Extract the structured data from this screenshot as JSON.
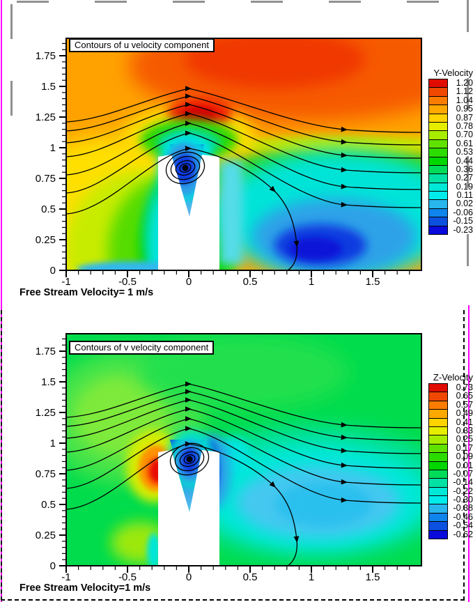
{
  "page": {
    "background": "#ffffff",
    "paper_edge_color": "#ff00ff",
    "ruler_dash_color": "#909090",
    "frame_border_color": "#000000"
  },
  "colormap": [
    "#e00c00",
    "#f04800",
    "#fa7c00",
    "#ffa800",
    "#ffd200",
    "#e6ee00",
    "#a8ec00",
    "#60e200",
    "#2cdc00",
    "#00d600",
    "#00dc58",
    "#00e2a4",
    "#00e8d8",
    "#00ecec",
    "#28b6ec",
    "#0e84ec",
    "#0c50e0",
    "#0a0adc"
  ],
  "plots": [
    {
      "title": "Contours of u velocity component",
      "caption": "Free Stream Velocity= 1 m/s",
      "legend_title": "Y-Velocity",
      "legend_values": [
        "1.20",
        "1.12",
        "1.04",
        "0.95",
        "0.87",
        "0.78",
        "0.70",
        "0.61",
        "0.53",
        "0.44",
        "0.36",
        "0.27",
        "0.19",
        "0.11",
        "0.02",
        "-0.06",
        "-0.15",
        "-0.23"
      ],
      "x_axis": {
        "range": [
          -1,
          1.898
        ],
        "minor_step": 0.1,
        "major_ticks": [
          {
            "label": "-1",
            "value": -1
          },
          {
            "label": "-0.5",
            "value": -0.5
          },
          {
            "label": "0",
            "value": 0
          },
          {
            "label": "0.5",
            "value": 0.5
          },
          {
            "label": "1",
            "value": 1
          },
          {
            "label": "1.5",
            "value": 1.5
          }
        ]
      },
      "y_axis": {
        "range": [
          0,
          1.892
        ],
        "minor_step": 0.05,
        "major_ticks": [
          {
            "label": "0",
            "value": 0
          },
          {
            "label": "0.25",
            "value": 0.25
          },
          {
            "label": "0.5",
            "value": 0.5
          },
          {
            "label": "0.75",
            "value": 0.75
          },
          {
            "label": "1",
            "value": 1
          },
          {
            "label": "1.25",
            "value": 1.25
          },
          {
            "label": "1.5",
            "value": 1.5
          },
          {
            "label": "1.75",
            "value": 1.75
          }
        ]
      }
    },
    {
      "title": "Contours of v velocity component",
      "caption": "Free Stream Velocity=1 m/s",
      "legend_title": "Z-Velocity",
      "legend_values": [
        "0.73",
        "0.65",
        "0.57",
        "0.49",
        "0.41",
        "0.33",
        "0.25",
        "0.17",
        "0.09",
        "0.01",
        "-0.07",
        "-0.14",
        "-0.22",
        "-0.30",
        "-0.38",
        "-0.46",
        "-0.54",
        "-0.62"
      ],
      "x_axis": {
        "range": [
          -1,
          1.898
        ],
        "minor_step": 0.1,
        "major_ticks": [
          {
            "label": "-1",
            "value": -1
          },
          {
            "label": "-0.5",
            "value": -0.5
          },
          {
            "label": "0",
            "value": 0
          },
          {
            "label": "0.5",
            "value": 0.5
          },
          {
            "label": "1",
            "value": 1
          },
          {
            "label": "1.5",
            "value": 1.5
          }
        ]
      },
      "y_axis": {
        "range": [
          0,
          1.892
        ],
        "minor_step": 0.05,
        "major_ticks": [
          {
            "label": "0",
            "value": 0
          },
          {
            "label": "0.25",
            "value": 0.25
          },
          {
            "label": "0.5",
            "value": 0.5
          },
          {
            "label": "0.75",
            "value": 0.75
          },
          {
            "label": "1",
            "value": 1
          },
          {
            "label": "1.25",
            "value": 1.25
          },
          {
            "label": "1.5",
            "value": 1.5
          },
          {
            "label": "1.75",
            "value": 1.75
          }
        ]
      }
    }
  ],
  "chart_data": [
    {
      "type": "heatmap",
      "title": "Contours of u velocity component",
      "field": "u velocity, legend labeled Y-Velocity",
      "xlim": [
        -1,
        1.9
      ],
      "ylim": [
        0,
        1.9
      ],
      "x_ticks": [
        -1,
        -0.5,
        0,
        0.5,
        1,
        1.5
      ],
      "y_ticks": [
        0,
        0.25,
        0.5,
        0.75,
        1,
        1.25,
        1.5,
        1.75
      ],
      "contour_levels": [
        1.2,
        1.12,
        1.04,
        0.95,
        0.87,
        0.78,
        0.7,
        0.61,
        0.53,
        0.44,
        0.36,
        0.27,
        0.19,
        0.11,
        0.02,
        -0.06,
        -0.15,
        -0.23
      ],
      "legend_position": "right",
      "annotations": [
        "Free Stream Velocity= 1 m/s"
      ],
      "features": [
        "white notched obstacle from x=-0.25 to 0.25, y=0 to ~0.93 with V-notch down to (0,0.45)",
        "accelerated orange/red region above y~1.1, peak ~1.2 above obstacle",
        "yellow-to-green decelerating flow upstream (left) of obstacle",
        "blue/cyan low-speed wake right of obstacle, minimum ~-0.23 near (0.6,0.25)",
        "streamlines with arrowheads rising over obstacle",
        "recirculation vortex spiral centered near (-0.03,0.86)",
        "separated streamline diving to bottom near x~0.75"
      ]
    },
    {
      "type": "heatmap",
      "title": "Contours of v velocity component",
      "field": "v velocity, legend labeled Z-Velocity",
      "xlim": [
        -1,
        1.9
      ],
      "ylim": [
        0,
        1.9
      ],
      "x_ticks": [
        -1,
        -0.5,
        0,
        0.5,
        1,
        1.5
      ],
      "y_ticks": [
        0,
        0.25,
        0.5,
        0.75,
        1,
        1.25,
        1.5,
        1.75
      ],
      "contour_levels": [
        0.73,
        0.65,
        0.57,
        0.49,
        0.41,
        0.33,
        0.25,
        0.17,
        0.09,
        0.01,
        -0.07,
        -0.14,
        -0.22,
        -0.3,
        -0.38,
        -0.46,
        -0.54,
        -0.62
      ],
      "legend_position": "right",
      "annotations": [
        "Free Stream Velocity=1 m/s"
      ],
      "features": [
        "mostly uniform green field (~0)",
        "strong red/orange updraft spot ~0.73 at upstream top corner of obstacle (-0.27,0.85)",
        "dark blue downdraft strip ~-0.62 just right of the notch (0.15,0.6..1.0)",
        "cyan/light-blue downwash lens in wake centered ~(1.1,0.5)",
        "same obstacle, streamlines and vortex spiral near (0,0.88)"
      ]
    }
  ]
}
